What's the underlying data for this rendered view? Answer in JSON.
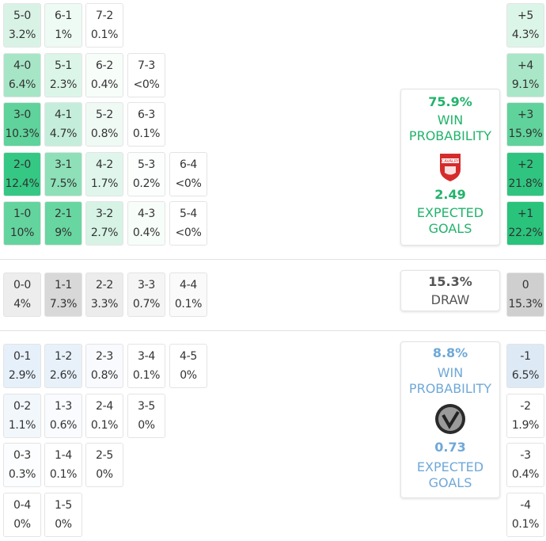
{
  "home_scores": [
    [
      "5-0",
      "3.2%"
    ],
    [
      "6-1",
      "1%"
    ],
    [
      "7-2",
      "0.1%"
    ],
    [
      "4-0",
      "6.4%"
    ],
    [
      "5-1",
      "2.3%"
    ],
    [
      "6-2",
      "0.4%"
    ],
    [
      "7-3",
      "<0%"
    ],
    [
      "3-0",
      "10.3%"
    ],
    [
      "4-1",
      "4.7%"
    ],
    [
      "5-2",
      "0.8%"
    ],
    [
      "6-3",
      "0.1%"
    ],
    [
      "2-0",
      "12.4%"
    ],
    [
      "3-1",
      "7.5%"
    ],
    [
      "4-2",
      "1.7%"
    ],
    [
      "5-3",
      "0.2%"
    ],
    [
      "6-4",
      "<0%"
    ],
    [
      "1-0",
      "10%"
    ],
    [
      "2-1",
      "9%"
    ],
    [
      "3-2",
      "2.7%"
    ],
    [
      "4-3",
      "0.4%"
    ],
    [
      "5-4",
      "<0%"
    ]
  ],
  "draw_scores": [
    [
      "0-0",
      "4%"
    ],
    [
      "1-1",
      "7.3%"
    ],
    [
      "2-2",
      "3.3%"
    ],
    [
      "3-3",
      "0.7%"
    ],
    [
      "4-4",
      "0.1%"
    ]
  ],
  "away_scores": [
    [
      "0-1",
      "2.9%"
    ],
    [
      "1-2",
      "2.6%"
    ],
    [
      "2-3",
      "0.8%"
    ],
    [
      "3-4",
      "0.1%"
    ],
    [
      "4-5",
      "0%"
    ],
    [
      "0-2",
      "1.1%"
    ],
    [
      "1-3",
      "0.6%"
    ],
    [
      "2-4",
      "0.1%"
    ],
    [
      "3-5",
      "0%"
    ],
    [
      "0-3",
      "0.3%"
    ],
    [
      "1-4",
      "0.1%"
    ],
    [
      "2-5",
      "0%"
    ],
    [
      "0-4",
      "0%"
    ],
    [
      "1-5",
      "0%"
    ]
  ],
  "margins": [
    [
      "+5",
      "4.3%"
    ],
    [
      "+4",
      "9.1%"
    ],
    [
      "+3",
      "15.9%"
    ],
    [
      "+2",
      "21.8%"
    ],
    [
      "+1",
      "22.2%"
    ],
    [
      "0",
      "15.3%"
    ],
    [
      "-1",
      "6.5%"
    ],
    [
      "-2",
      "1.9%"
    ],
    [
      "-3",
      "0.4%"
    ],
    [
      "-4",
      "0.1%"
    ]
  ],
  "home_card": {
    "win_pct": "75.9%",
    "win_label_1": "WIN",
    "win_label_2": "PROBABILITY",
    "xg": "2.49",
    "xg_label_1": "EXPECTED",
    "xg_label_2": "GOALS",
    "logo_text": "CAVALRY",
    "color": "#21b36b"
  },
  "draw_card": {
    "pct": "15.3%",
    "label": "DRAW"
  },
  "away_card": {
    "win_pct": "8.8%",
    "win_label_1": "WIN",
    "win_label_2": "PROBABILITY",
    "xg": "0.73",
    "xg_label_1": "EXPECTED",
    "xg_label_2": "GOALS",
    "color": "#6fa8d8"
  }
}
